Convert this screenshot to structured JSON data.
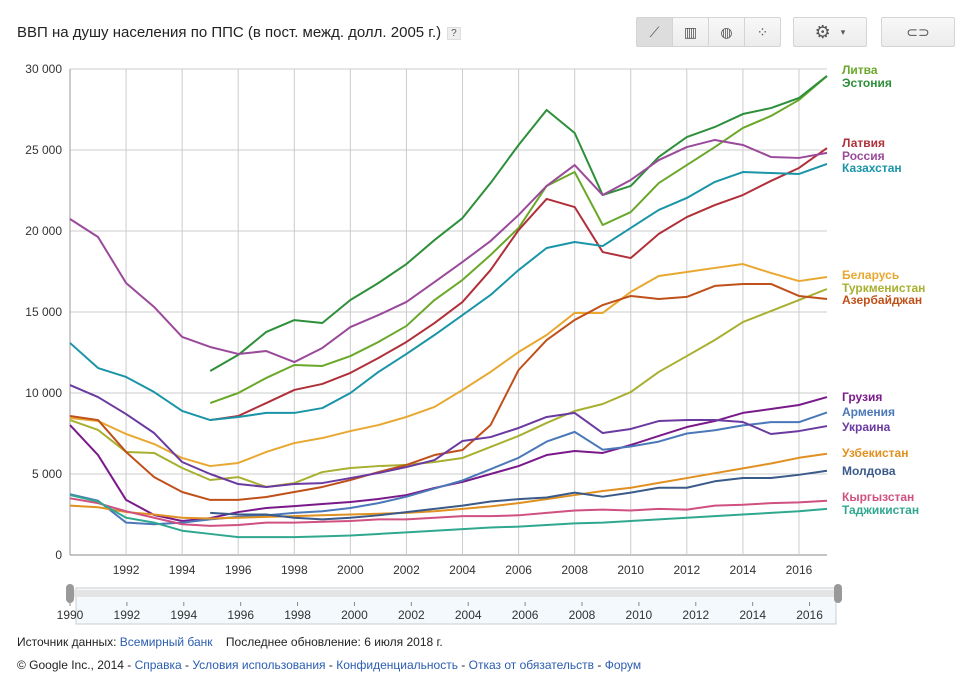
{
  "header": {
    "title": "ВВП на душу населения по ППС (в пост. межд. долл. 2005 г.)",
    "help": "?",
    "toolbar": {
      "line_icon": "line-chart-icon",
      "bar_icon": "bar-chart-icon",
      "map_icon": "globe-icon",
      "scatter_icon": "scatter-icon",
      "settings_icon": "gear-icon",
      "link_icon": "link-icon"
    }
  },
  "footer": {
    "source_label": "Источник данных:",
    "source_link": "Всемирный банк",
    "updated": "Последнее обновление: 6 июля 2018 г.",
    "copyright": "© Google Inc., 2014",
    "links": [
      "Справка",
      "Условия использования",
      "Конфиденциальность",
      "Отказ от обязательств",
      "Форум"
    ],
    "sep": " - "
  },
  "slider": {
    "ticks": [
      "1990",
      "1992",
      "1994",
      "1996",
      "1998",
      "2000",
      "2002",
      "2004",
      "2006",
      "2008",
      "2010",
      "2012",
      "2014",
      "2016"
    ],
    "range": [
      1990,
      2017
    ]
  },
  "chart_data": {
    "type": "line",
    "xlim": [
      1990,
      2017
    ],
    "ylim": [
      0,
      30000
    ],
    "grid": true,
    "legend": "right (end-of-line labels)",
    "x_ticks": [
      "1992",
      "1994",
      "1996",
      "1998",
      "2000",
      "2002",
      "2004",
      "2006",
      "2008",
      "2010",
      "2012",
      "2014",
      "2016"
    ],
    "y_ticks": [
      "0",
      "5 000",
      "10 000",
      "15 000",
      "20 000",
      "25 000",
      "30 000"
    ],
    "series": [
      {
        "name": "Литва",
        "color": "#6aa82a",
        "start": 1995,
        "values": [
          9380,
          10000,
          10930,
          11730,
          11670,
          12280,
          13150,
          14140,
          15740,
          16980,
          18520,
          20190,
          22780,
          23640,
          20370,
          21170,
          22960,
          24070,
          25180,
          26360,
          27100,
          28090,
          29570
        ]
      },
      {
        "name": "Эстония",
        "color": "#2e8f3a",
        "start": 1995,
        "values": [
          11360,
          12350,
          13770,
          14500,
          14320,
          15740,
          16790,
          17960,
          19440,
          20800,
          22960,
          25310,
          27470,
          26050,
          22220,
          22780,
          24570,
          25800,
          26420,
          27220,
          27590,
          28210,
          29570
        ]
      },
      {
        "name": "Латвия",
        "color": "#b0303a",
        "start": 1995,
        "values": [
          8330,
          8580,
          9380,
          10190,
          10560,
          11240,
          12160,
          13150,
          14320,
          15620,
          17590,
          20060,
          21980,
          21480,
          18700,
          18330,
          19820,
          20860,
          21600,
          22220,
          23090,
          23890,
          25120
        ]
      },
      {
        "name": "Россия",
        "color": "#9a4a9a",
        "start": 1990,
        "values": [
          20740,
          19630,
          16790,
          15310,
          13460,
          12840,
          12410,
          12590,
          11910,
          12780,
          14070,
          14810,
          15620,
          16850,
          18090,
          19380,
          20990,
          22780,
          24070,
          22220,
          23150,
          24380,
          25180,
          25620,
          25310,
          24570,
          24510,
          24820
        ]
      },
      {
        "name": "Казахстан",
        "color": "#1a95a8",
        "start": 1990,
        "values": [
          13090,
          11540,
          10990,
          10060,
          8890,
          8330,
          8520,
          8770,
          8770,
          9070,
          10000,
          11300,
          12410,
          13580,
          14810,
          16050,
          17590,
          18950,
          19320,
          19070,
          20190,
          21300,
          22040,
          23030,
          23640,
          23580,
          23520,
          24140
        ]
      },
      {
        "name": "Беларусь",
        "color": "#e8a830",
        "start": 1990,
        "values": [
          8460,
          8270,
          7470,
          6850,
          5990,
          5490,
          5680,
          6360,
          6910,
          7220,
          7650,
          8020,
          8520,
          9140,
          10190,
          11300,
          12530,
          13580,
          14940,
          14940,
          16240,
          17220,
          17470,
          17720,
          17960,
          17410,
          16910,
          17160
        ]
      },
      {
        "name": "Туркменистан",
        "color": "#a8b030",
        "start": 1990,
        "values": [
          8330,
          7720,
          6360,
          6300,
          5370,
          4630,
          4810,
          4200,
          4440,
          5120,
          5370,
          5490,
          5560,
          5740,
          5990,
          6670,
          7350,
          8150,
          8890,
          9320,
          10060,
          11300,
          12280,
          13270,
          14380,
          15060,
          15740,
          16420
        ]
      },
      {
        "name": "Азербайджан",
        "color": "#c0501a",
        "start": 1990,
        "values": [
          8580,
          8330,
          6360,
          4810,
          3890,
          3400,
          3400,
          3580,
          3890,
          4200,
          4630,
          5120,
          5560,
          6170,
          6480,
          8020,
          11420,
          13270,
          14510,
          15430,
          15990,
          15800,
          15930,
          16610,
          16730,
          16730,
          15990,
          15800
        ]
      },
      {
        "name": "Грузия",
        "color": "#7a1a8a",
        "start": 1990,
        "values": [
          8020,
          6170,
          3400,
          2470,
          2100,
          2280,
          2650,
          2900,
          3020,
          3150,
          3270,
          3460,
          3700,
          4140,
          4510,
          5000,
          5490,
          6170,
          6420,
          6300,
          6790,
          7350,
          7900,
          8270,
          8770,
          9010,
          9260,
          9750
        ]
      },
      {
        "name": "Армения",
        "color": "#4a78b8",
        "start": 1990,
        "values": [
          3750,
          3350,
          2000,
          1900,
          2000,
          2200,
          2350,
          2450,
          2600,
          2700,
          2900,
          3200,
          3600,
          4100,
          4600,
          5300,
          6000,
          7000,
          7600,
          6500,
          6700,
          7000,
          7500,
          7700,
          8000,
          8200,
          8200,
          8800
        ]
      },
      {
        "name": "Украина",
        "color": "#6a3aa0",
        "start": 1990,
        "values": [
          10490,
          9750,
          8700,
          7530,
          5740,
          5000,
          4380,
          4200,
          4380,
          4440,
          4750,
          5060,
          5430,
          5860,
          7040,
          7280,
          7840,
          8520,
          8770,
          7530,
          7780,
          8270,
          8330,
          8330,
          8210,
          7470,
          7650,
          7960
        ]
      },
      {
        "name": "Узбекистан",
        "color": "#e09020",
        "start": 1990,
        "values": [
          3050,
          2950,
          2650,
          2500,
          2300,
          2250,
          2300,
          2350,
          2400,
          2450,
          2500,
          2550,
          2600,
          2700,
          2850,
          3000,
          3200,
          3450,
          3700,
          3950,
          4150,
          4450,
          4750,
          5050,
          5350,
          5650,
          6000,
          6250
        ]
      },
      {
        "name": "Молдова",
        "color": "#3a5a8a",
        "start": 1995,
        "values": [
          2600,
          2500,
          2500,
          2300,
          2200,
          2300,
          2450,
          2650,
          2850,
          3050,
          3300,
          3450,
          3550,
          3850,
          3600,
          3850,
          4150,
          4150,
          4550,
          4750,
          4750,
          4950,
          5200
        ]
      },
      {
        "name": "Кыргызстан",
        "color": "#d05080",
        "start": 1990,
        "values": [
          3500,
          3200,
          2700,
          2300,
          1900,
          1800,
          1850,
          2000,
          2000,
          2050,
          2100,
          2200,
          2200,
          2300,
          2400,
          2400,
          2450,
          2600,
          2750,
          2800,
          2750,
          2850,
          2800,
          3050,
          3100,
          3200,
          3250,
          3350
        ]
      },
      {
        "name": "Таджикистан",
        "color": "#30a890",
        "start": 1990,
        "values": [
          3700,
          3300,
          2300,
          2000,
          1500,
          1300,
          1100,
          1100,
          1100,
          1150,
          1200,
          1300,
          1400,
          1500,
          1600,
          1700,
          1750,
          1850,
          1950,
          2000,
          2100,
          2200,
          2300,
          2400,
          2500,
          2600,
          2700,
          2850
        ]
      }
    ]
  }
}
